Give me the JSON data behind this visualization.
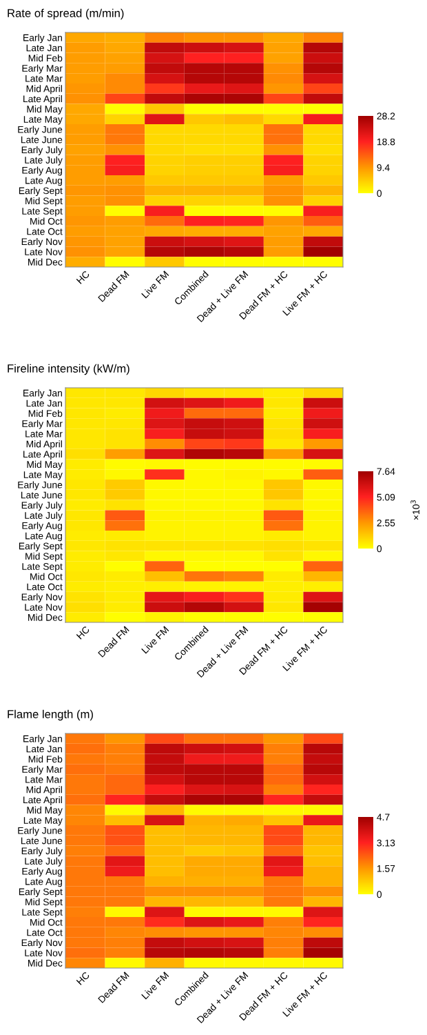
{
  "chart_data": [
    {
      "type": "heatmap",
      "title": "Rate of spread (m/min)",
      "categories": [
        "HC",
        "Dead FM",
        "Live FM",
        "Combined",
        "Dead + Live FM",
        "Dead FM + HC",
        "Live FM + HC"
      ],
      "y_categories": [
        "Early Jan",
        "Late Jan",
        "Mid Feb",
        "Early Mar",
        "Late Mar",
        "Mid April",
        "Late April",
        "Mid May",
        "Late May",
        "Early June",
        "Late June",
        "Early July",
        "Late July",
        "Early Aug",
        "Late Aug",
        "Early Sept",
        "Mid Sept",
        "Late Sept",
        "Mid Oct",
        "Late Oct",
        "Early Nov",
        "Late Nov",
        "Mid Dec"
      ],
      "cells": [
        [
          8,
          7.5,
          11,
          10,
          10,
          8,
          11
        ],
        [
          9,
          8,
          25,
          24,
          23,
          8.5,
          26
        ],
        [
          9,
          8.5,
          23,
          19,
          19,
          8.5,
          24
        ],
        [
          9,
          9,
          25,
          26,
          26,
          10,
          26
        ],
        [
          9,
          10.5,
          23,
          26,
          26,
          10.5,
          23
        ],
        [
          9.5,
          10.5,
          17,
          21,
          22,
          9.5,
          16
        ],
        [
          10,
          16,
          25,
          27,
          27,
          16,
          25
        ],
        [
          8,
          0.3,
          5,
          0.3,
          0.3,
          0.3,
          0.3
        ],
        [
          8,
          4,
          22,
          5,
          6,
          3.5,
          20
        ],
        [
          9,
          12,
          3.5,
          3.5,
          3.5,
          12.5,
          3.5
        ],
        [
          9,
          12,
          3.5,
          3.5,
          3.5,
          12.5,
          3.5
        ],
        [
          8.5,
          10,
          3.5,
          3,
          3,
          10,
          3
        ],
        [
          9,
          19,
          4,
          4.5,
          4.5,
          19,
          4
        ],
        [
          9,
          19.5,
          4,
          4.5,
          4.5,
          19.5,
          4
        ],
        [
          9,
          9,
          5,
          5,
          5,
          9,
          5
        ],
        [
          9.5,
          10,
          7,
          7,
          7,
          10,
          7
        ],
        [
          9,
          10,
          4,
          4,
          4,
          10,
          4
        ],
        [
          9,
          0.3,
          19.5,
          0.3,
          0.3,
          0.3,
          19.5
        ],
        [
          9.5,
          9,
          13,
          19,
          18.5,
          9.5,
          14
        ],
        [
          9,
          8.5,
          8,
          7.5,
          7.5,
          8.5,
          8
        ],
        [
          9.5,
          8.5,
          24,
          23,
          22,
          9,
          25
        ],
        [
          10,
          8.5,
          26,
          27,
          26,
          9,
          28
        ],
        [
          7.5,
          0.3,
          5,
          0.3,
          0.3,
          0.3,
          0.3
        ]
      ],
      "clim": [
        0,
        28.2
      ],
      "cticks": [
        0,
        9.4,
        18.8,
        28.2
      ]
    },
    {
      "type": "heatmap",
      "title": "Fireline intensity (kW/m)",
      "clabel": "×10$^{3}$",
      "categories": [
        "HC",
        "Dead FM",
        "Live FM",
        "Combined",
        "Dead + Live FM",
        "Dead FM + HC",
        "Live FM + HC"
      ],
      "y_categories": [
        "Early Jan",
        "Late Jan",
        "Mid Feb",
        "Early Mar",
        "Late Mar",
        "Mid April",
        "Late April",
        "Mid May",
        "Late May",
        "Early June",
        "Late June",
        "Early July",
        "Late July",
        "Early Aug",
        "Late Aug",
        "Early Sept",
        "Mid Sept",
        "Late Sept",
        "Mid Oct",
        "Late Oct",
        "Early Nov",
        "Late Nov",
        "Mid Dec"
      ],
      "cells": [
        [
          0.6,
          0.6,
          1.0,
          0.7,
          0.7,
          0.5,
          1.0
        ],
        [
          0.6,
          0.6,
          6.3,
          6.0,
          5.5,
          0.6,
          6.5
        ],
        [
          0.6,
          0.5,
          5.5,
          3.5,
          3.5,
          0.5,
          5.5
        ],
        [
          0.6,
          0.6,
          6.0,
          6.6,
          6.4,
          0.7,
          6.4
        ],
        [
          0.6,
          0.7,
          5.3,
          6.6,
          6.4,
          0.8,
          5.3
        ],
        [
          0.6,
          0.7,
          2.8,
          4.3,
          4.6,
          0.6,
          2.5
        ],
        [
          0.8,
          2.4,
          6.0,
          7.2,
          7.0,
          2.4,
          6.2
        ],
        [
          0.5,
          0.1,
          0.2,
          0.1,
          0.1,
          0.1,
          0.1
        ],
        [
          0.5,
          0.2,
          4.8,
          0.2,
          0.3,
          0.2,
          3.8
        ],
        [
          0.6,
          1.3,
          0.2,
          0.2,
          0.2,
          1.4,
          0.2
        ],
        [
          0.6,
          1.3,
          0.2,
          0.2,
          0.2,
          1.4,
          0.2
        ],
        [
          0.5,
          0.7,
          0.2,
          0.2,
          0.2,
          0.7,
          0.2
        ],
        [
          0.6,
          3.9,
          0.3,
          0.3,
          0.3,
          3.9,
          0.3
        ],
        [
          0.6,
          3.4,
          0.3,
          0.3,
          0.3,
          3.4,
          0.3
        ],
        [
          0.5,
          0.5,
          0.3,
          0.3,
          0.3,
          0.5,
          0.3
        ],
        [
          0.6,
          0.7,
          0.7,
          0.7,
          0.7,
          0.8,
          0.7
        ],
        [
          0.5,
          0.6,
          0.2,
          0.2,
          0.2,
          0.7,
          0.2
        ],
        [
          0.5,
          0.05,
          3.7,
          0.05,
          0.05,
          0.05,
          3.7
        ],
        [
          0.6,
          0.5,
          1.6,
          3.3,
          3.0,
          0.5,
          1.8
        ],
        [
          0.5,
          0.4,
          0.4,
          0.3,
          0.3,
          0.4,
          0.4
        ],
        [
          0.7,
          0.5,
          5.8,
          5.3,
          4.7,
          0.5,
          6.0
        ],
        [
          0.8,
          0.5,
          6.5,
          7.1,
          6.3,
          0.6,
          7.5
        ],
        [
          0.5,
          0.05,
          0.3,
          0.05,
          0.05,
          0.05,
          0.05
        ]
      ],
      "clim": [
        0,
        7.64
      ],
      "cticks": [
        0,
        2.55,
        5.09,
        7.64
      ]
    },
    {
      "type": "heatmap",
      "title": "Flame length (m)",
      "categories": [
        "HC",
        "Dead FM",
        "Live FM",
        "Combined",
        "Dead + Live FM",
        "Dead FM + HC",
        "Live FM + HC"
      ],
      "y_categories": [
        "Early Jan",
        "Late Jan",
        "Mid Feb",
        "Early Mar",
        "Late Mar",
        "Mid April",
        "Late April",
        "Mid May",
        "Late May",
        "Early June",
        "Late June",
        "Early July",
        "Late July",
        "Early Aug",
        "Late Aug",
        "Early Sept",
        "Mid Sept",
        "Late Sept",
        "Mid Oct",
        "Late Oct",
        "Early Nov",
        "Late Nov",
        "Mid Dec"
      ],
      "cells": [
        [
          2.0,
          1.6,
          2.6,
          2.1,
          2.1,
          1.6,
          2.6
        ],
        [
          2.1,
          1.9,
          4.2,
          4.0,
          3.9,
          1.9,
          4.3
        ],
        [
          2.0,
          1.9,
          4.1,
          3.4,
          3.4,
          1.9,
          4.1
        ],
        [
          2.1,
          2.0,
          4.2,
          4.3,
          4.3,
          2.2,
          4.3
        ],
        [
          2.0,
          2.2,
          3.9,
          4.3,
          4.3,
          2.2,
          3.9
        ],
        [
          2.0,
          2.2,
          3.2,
          3.7,
          3.8,
          1.9,
          3.1
        ],
        [
          2.1,
          3.1,
          4.1,
          4.5,
          4.5,
          3.1,
          4.1
        ],
        [
          1.8,
          0.1,
          1.1,
          0.1,
          0.1,
          0.1,
          0.1
        ],
        [
          1.8,
          1.0,
          3.8,
          1.2,
          1.3,
          0.9,
          3.5
        ],
        [
          2.0,
          2.5,
          1.0,
          1.1,
          1.1,
          2.6,
          1.1
        ],
        [
          2.0,
          2.5,
          1.0,
          1.1,
          1.1,
          2.6,
          1.1
        ],
        [
          1.9,
          2.2,
          1.0,
          0.8,
          0.9,
          2.2,
          0.9
        ],
        [
          2.0,
          3.6,
          1.0,
          1.3,
          1.3,
          3.6,
          1.0
        ],
        [
          2.0,
          3.4,
          1.0,
          1.3,
          1.3,
          3.4,
          1.2
        ],
        [
          2.0,
          2.0,
          1.2,
          1.2,
          1.2,
          2.0,
          1.2
        ],
        [
          2.0,
          2.0,
          1.7,
          1.7,
          1.7,
          2.0,
          1.7
        ],
        [
          2.0,
          2.0,
          1.1,
          1.1,
          1.1,
          2.0,
          1.1
        ],
        [
          1.9,
          0.1,
          3.7,
          0.1,
          0.1,
          0.1,
          3.7
        ],
        [
          2.0,
          2.0,
          3.0,
          3.7,
          3.5,
          1.9,
          3.1
        ],
        [
          2.0,
          1.8,
          1.7,
          1.6,
          1.6,
          1.8,
          1.7
        ],
        [
          2.0,
          1.9,
          4.1,
          3.9,
          3.8,
          1.9,
          4.2
        ],
        [
          2.1,
          1.9,
          4.3,
          4.4,
          4.3,
          1.9,
          4.6
        ],
        [
          1.8,
          0.1,
          1.2,
          0.1,
          0.1,
          0.1,
          0.1
        ]
      ],
      "clim": [
        0,
        4.7
      ],
      "cticks": [
        0,
        1.57,
        3.13,
        4.7
      ]
    }
  ]
}
